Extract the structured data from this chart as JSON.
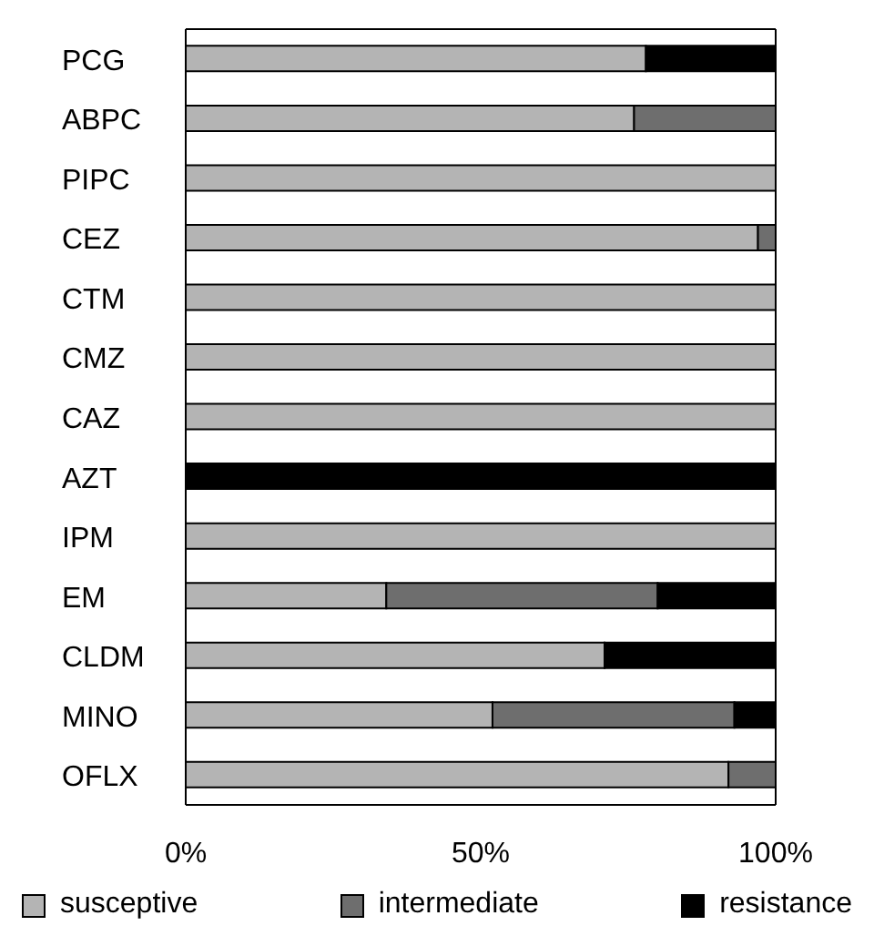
{
  "chart_data": {
    "type": "bar",
    "orientation": "horizontal",
    "stacked": true,
    "categories": [
      "PCG",
      "ABPC",
      "PIPC",
      "CEZ",
      "CTM",
      "CMZ",
      "CAZ",
      "AZT",
      "IPM",
      "EM",
      "CLDM",
      "MINO",
      "OFLX"
    ],
    "series": [
      {
        "name": "susceptive",
        "color": "#b4b4b4",
        "values": [
          78,
          76,
          100,
          97,
          100,
          100,
          100,
          0,
          100,
          34,
          71,
          52,
          92
        ]
      },
      {
        "name": "intermediate",
        "color": "#6e6e6e",
        "values": [
          0,
          24,
          0,
          3,
          0,
          0,
          0,
          0,
          0,
          46,
          0,
          41,
          8
        ]
      },
      {
        "name": "resistance",
        "color": "#000000",
        "values": [
          22,
          0,
          0,
          0,
          0,
          0,
          0,
          100,
          0,
          20,
          29,
          7,
          0
        ]
      }
    ],
    "xlim": [
      0,
      100
    ],
    "xticks": [
      {
        "value": 0,
        "label": "0%"
      },
      {
        "value": 50,
        "label": "50%"
      },
      {
        "value": 100,
        "label": "100%"
      }
    ],
    "grid": false,
    "legend": "bottom"
  }
}
